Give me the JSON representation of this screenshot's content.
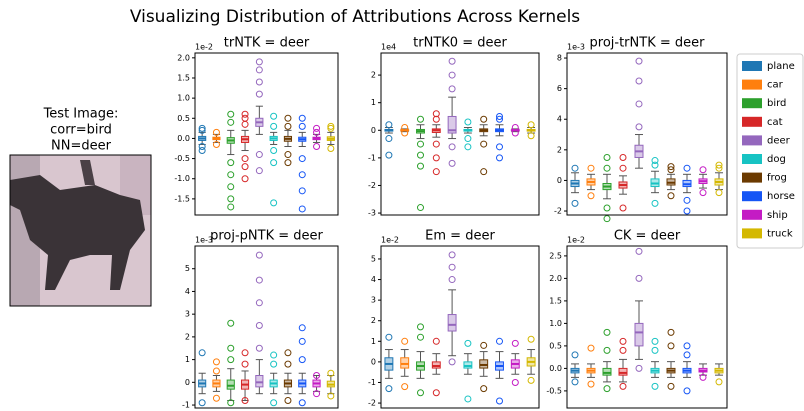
{
  "title": "Visualizing Distribution of Attributions Across Kernels",
  "image_caption": [
    "Test Image:",
    "corr=bird",
    "NN=deer"
  ],
  "legend": {
    "labels": [
      "plane",
      "car",
      "bird",
      "cat",
      "deer",
      "dog",
      "frog",
      "horse",
      "ship",
      "truck"
    ],
    "colors": [
      "#1f77b4",
      "#ff7f0e",
      "#2ca02c",
      "#d62728",
      "#9467bd",
      "#17c3c3",
      "#6b3a00",
      "#1555f5",
      "#c41bc4",
      "#d4b800"
    ]
  },
  "chart_data": [
    {
      "type": "box",
      "title": "trNTK = deer",
      "offset_label": "1e-2",
      "ylim": [
        -1.9,
        2.12
      ],
      "yticks": [
        -1.5,
        {
          "value": -1,
          "label": "-1.0"
        },
        -0.5,
        {
          "value": 0,
          "label": "0.0"
        },
        0.5,
        {
          "value": 1,
          "label": "1.0"
        },
        1.5,
        {
          "value": 2,
          "label": "2.0"
        }
      ],
      "boxes": [
        {
          "low": -0.15,
          "q1": -0.05,
          "median": 0,
          "q3": 0.05,
          "high": 0.15,
          "outliers": [
            -0.3,
            -0.2,
            0.2,
            0.25
          ]
        },
        {
          "low": -0.1,
          "q1": -0.03,
          "median": 0,
          "q3": 0.03,
          "high": 0.1,
          "outliers": [
            -0.15,
            0.15
          ]
        },
        {
          "low": -0.4,
          "q1": -0.12,
          "median": -0.05,
          "q3": 0.02,
          "high": 0.2,
          "outliers": [
            -1.7,
            -1.5,
            -1.2,
            -0.9,
            -0.6,
            0.4,
            0.6
          ]
        },
        {
          "low": -0.3,
          "q1": -0.1,
          "median": -0.02,
          "q3": 0.05,
          "high": 0.2,
          "outliers": [
            -1.0,
            -0.7,
            -0.5,
            0.35,
            0.5,
            0.6
          ]
        },
        {
          "low": 0.1,
          "q1": 0.3,
          "median": 0.4,
          "q3": 0.5,
          "high": 0.8,
          "outliers": [
            -0.8,
            -0.4,
            1.1,
            1.4,
            1.7,
            1.9
          ]
        },
        {
          "low": -0.15,
          "q1": -0.05,
          "median": 0,
          "q3": 0.05,
          "high": 0.15,
          "outliers": [
            -1.6,
            -0.6,
            -0.3,
            0.3,
            0.55
          ]
        },
        {
          "low": -0.2,
          "q1": -0.07,
          "median": -0.01,
          "q3": 0.05,
          "high": 0.2,
          "outliers": [
            -0.6,
            -0.4,
            0.3,
            0.5
          ]
        },
        {
          "low": -0.2,
          "q1": -0.07,
          "median": -0.02,
          "q3": 0.03,
          "high": 0.15,
          "outliers": [
            -1.75,
            -1.3,
            -0.9,
            -0.5,
            0.3,
            0.5
          ]
        },
        {
          "low": -0.1,
          "q1": -0.03,
          "median": 0,
          "q3": 0.03,
          "high": 0.1,
          "outliers": [
            -0.2,
            0.15,
            0.25
          ]
        },
        {
          "low": -0.15,
          "q1": -0.05,
          "median": -0.01,
          "q3": 0.04,
          "high": 0.15,
          "outliers": [
            -0.25,
            0.25,
            0.3
          ]
        }
      ]
    },
    {
      "type": "box",
      "title": "trNTK0 = deer",
      "offset_label": "1e4",
      "ylim": [
        -3.07,
        2.8
      ],
      "yticks": [
        -3,
        -2,
        -1,
        0,
        1,
        2
      ],
      "boxes": [
        {
          "low": -0.1,
          "q1": -0.03,
          "median": 0,
          "q3": 0.03,
          "high": 0.1,
          "outliers": [
            -0.9,
            -0.3,
            0.2
          ]
        },
        {
          "low": -0.05,
          "q1": -0.02,
          "median": 0,
          "q3": 0.02,
          "high": 0.05,
          "outliers": [
            -0.1,
            0.1
          ]
        },
        {
          "low": -0.3,
          "q1": -0.1,
          "median": -0.03,
          "q3": 0.03,
          "high": 0.2,
          "outliers": [
            -2.8,
            -1.3,
            -0.9,
            -0.5,
            0.4
          ]
        },
        {
          "low": -0.25,
          "q1": -0.08,
          "median": 0,
          "q3": 0.05,
          "high": 0.2,
          "outliers": [
            -1.5,
            -1.0,
            -0.5,
            0.4,
            0.6
          ]
        },
        {
          "low": -0.3,
          "q1": -0.1,
          "median": 0,
          "q3": 0.5,
          "high": 1.2,
          "outliers": [
            -1.2,
            -0.6,
            1.5,
            2.0,
            2.5
          ]
        },
        {
          "low": -0.1,
          "q1": -0.03,
          "median": 0,
          "q3": 0.03,
          "high": 0.1,
          "outliers": [
            -0.6,
            -0.3,
            0.3
          ]
        },
        {
          "low": -0.2,
          "q1": -0.05,
          "median": 0,
          "q3": 0.05,
          "high": 0.2,
          "outliers": [
            -1.5,
            -0.5,
            0.4
          ]
        },
        {
          "low": -0.2,
          "q1": -0.05,
          "median": 0,
          "q3": 0.05,
          "high": 0.2,
          "outliers": [
            -1.0,
            -0.6,
            0.4,
            0.5
          ]
        },
        {
          "low": -0.05,
          "q1": -0.02,
          "median": 0,
          "q3": 0.02,
          "high": 0.05,
          "outliers": [
            -0.1,
            0.1
          ]
        },
        {
          "low": -0.1,
          "q1": -0.03,
          "median": 0,
          "q3": 0.03,
          "high": 0.1,
          "outliers": [
            -0.2,
            0.2
          ]
        }
      ]
    },
    {
      "type": "box",
      "title": "proj-trNTK = deer",
      "offset_label": "1e-3",
      "ylim": [
        -2.26,
        8.33
      ],
      "yticks": [
        -2,
        0,
        2,
        4,
        6,
        8
      ],
      "boxes": [
        {
          "low": -0.8,
          "q1": -0.4,
          "median": -0.2,
          "q3": 0,
          "high": 0.5,
          "outliers": [
            -1.5,
            0.8
          ]
        },
        {
          "low": -0.6,
          "q1": -0.3,
          "median": -0.1,
          "q3": 0.1,
          "high": 0.4,
          "outliers": [
            -1.0,
            0.8
          ]
        },
        {
          "low": -1.2,
          "q1": -0.6,
          "median": -0.4,
          "q3": -0.2,
          "high": 0.4,
          "outliers": [
            -2.5,
            -1.8,
            0.8,
            1.5
          ]
        },
        {
          "low": -0.9,
          "q1": -0.5,
          "median": -0.3,
          "q3": -0.1,
          "high": 0.3,
          "outliers": [
            -1.8,
            0.8,
            1.5
          ]
        },
        {
          "low": 0.8,
          "q1": 1.5,
          "median": 1.9,
          "q3": 2.3,
          "high": 3.0,
          "outliers": [
            3.5,
            5,
            6.5,
            7.8
          ]
        },
        {
          "low": -0.8,
          "q1": -0.4,
          "median": -0.2,
          "q3": 0.1,
          "high": 0.6,
          "outliers": [
            -1.5,
            1.0,
            1.3
          ]
        },
        {
          "low": -0.6,
          "q1": -0.3,
          "median": -0.15,
          "q3": 0.1,
          "high": 0.4,
          "outliers": [
            -1.0,
            0.7,
            0.9
          ]
        },
        {
          "low": -0.8,
          "q1": -0.4,
          "median": -0.25,
          "q3": 0,
          "high": 0.4,
          "outliers": [
            -2.0,
            -1.3,
            0.8
          ]
        },
        {
          "low": -0.5,
          "q1": -0.2,
          "median": -0.05,
          "q3": 0.1,
          "high": 0.4,
          "outliers": [
            -0.8,
            0.7
          ]
        },
        {
          "low": -0.6,
          "q1": -0.3,
          "median": -0.1,
          "q3": 0.1,
          "high": 0.5,
          "outliers": [
            -0.8,
            0.8,
            1.0
          ]
        }
      ]
    },
    {
      "type": "box",
      "title": "proj-pNTK = deer",
      "offset_label": "1e-3",
      "ylim": [
        -1.13,
        6.0
      ],
      "yticks": [
        -1,
        0,
        1,
        2,
        3,
        4,
        5
      ],
      "boxes": [
        {
          "low": -0.5,
          "q1": -0.2,
          "median": -0.05,
          "q3": 0.1,
          "high": 0.4,
          "outliers": [
            -0.9,
            1.3
          ]
        },
        {
          "low": -0.4,
          "q1": -0.2,
          "median": -0.05,
          "q3": 0.1,
          "high": 0.3,
          "outliers": [
            -0.7,
            0.5,
            0.9
          ]
        },
        {
          "low": -0.8,
          "q1": -0.3,
          "median": -0.15,
          "q3": 0.1,
          "high": 0.6,
          "outliers": [
            -0.9,
            1.0,
            1.5,
            2.6
          ]
        },
        {
          "low": -0.8,
          "q1": -0.3,
          "median": -0.1,
          "q3": 0.1,
          "high": 0.5,
          "outliers": [
            -0.8,
            0.8,
            1.3
          ]
        },
        {
          "low": -0.5,
          "q1": -0.2,
          "median": 0,
          "q3": 0.3,
          "high": 1.0,
          "outliers": [
            1.5,
            2.5,
            3.5,
            4.5,
            5.6
          ]
        },
        {
          "low": -0.5,
          "q1": -0.2,
          "median": -0.05,
          "q3": 0.1,
          "high": 0.4,
          "outliers": [
            -0.9,
            0.8,
            1.2
          ]
        },
        {
          "low": -0.5,
          "q1": -0.2,
          "median": -0.05,
          "q3": 0.1,
          "high": 0.4,
          "outliers": [
            -0.8,
            0.8,
            1.3
          ]
        },
        {
          "low": -0.5,
          "q1": -0.2,
          "median": -0.05,
          "q3": 0.1,
          "high": 0.4,
          "outliers": [
            -0.9,
            1.0,
            1.8,
            2.4
          ]
        },
        {
          "low": -0.4,
          "q1": -0.2,
          "median": -0.05,
          "q3": 0.1,
          "high": 0.3,
          "outliers": [
            -0.5,
            0.3
          ]
        },
        {
          "low": -0.5,
          "q1": -0.2,
          "median": -0.1,
          "q3": 0.05,
          "high": 0.3,
          "outliers": [
            -0.6,
            0.4
          ]
        }
      ]
    },
    {
      "type": "box",
      "title": "Em = deer",
      "offset_label": "1e-2",
      "ylim": [
        -2.24,
        5.63
      ],
      "yticks": [
        -2,
        -1,
        0,
        1,
        2,
        3,
        4,
        5
      ],
      "boxes": [
        {
          "low": -0.8,
          "q1": -0.4,
          "median": -0.1,
          "q3": 0.2,
          "high": 0.6,
          "outliers": [
            -1.3,
            1.2
          ]
        },
        {
          "low": -0.7,
          "q1": -0.3,
          "median": -0.1,
          "q3": 0.2,
          "high": 0.6,
          "outliers": [
            -1.2,
            1.0
          ]
        },
        {
          "low": -0.8,
          "q1": -0.4,
          "median": -0.2,
          "q3": 0,
          "high": 0.5,
          "outliers": [
            -1.5,
            1.2,
            1.7
          ]
        },
        {
          "low": -0.6,
          "q1": -0.3,
          "median": -0.2,
          "q3": 0,
          "high": 0.4,
          "outliers": [
            -1.5,
            1.0
          ]
        },
        {
          "low": 0.3,
          "q1": 1.5,
          "median": 1.8,
          "q3": 2.3,
          "high": 3.5,
          "outliers": [
            0,
            4.0,
            4.6,
            5.2
          ]
        },
        {
          "low": -0.6,
          "q1": -0.3,
          "median": -0.2,
          "q3": 0,
          "high": 0.4,
          "outliers": [
            -1.8,
            0.9
          ]
        },
        {
          "low": -0.7,
          "q1": -0.3,
          "median": -0.15,
          "q3": 0.1,
          "high": 0.5,
          "outliers": [
            -1.3,
            0.8
          ]
        },
        {
          "low": -0.8,
          "q1": -0.4,
          "median": -0.2,
          "q3": 0,
          "high": 0.5,
          "outliers": [
            -1.9,
            1.0
          ]
        },
        {
          "low": -0.6,
          "q1": -0.3,
          "median": -0.1,
          "q3": 0.1,
          "high": 0.4,
          "outliers": [
            -1.0,
            0.9
          ]
        },
        {
          "low": -0.6,
          "q1": -0.2,
          "median": 0,
          "q3": 0.2,
          "high": 0.6,
          "outliers": [
            -0.9,
            1.1
          ]
        }
      ]
    },
    {
      "type": "box",
      "title": "CK = deer",
      "offset_label": "1e-2",
      "ylim": [
        -0.88,
        2.72
      ],
      "yticks": [
        -0.5,
        {
          "value": 0,
          "label": "0.0"
        },
        0.5,
        {
          "value": 1,
          "label": "1.0"
        },
        1.5,
        {
          "value": 2,
          "label": "2.0"
        },
        2.5
      ],
      "boxes": [
        {
          "low": -0.2,
          "q1": -0.1,
          "median": -0.05,
          "q3": 0,
          "high": 0.1,
          "outliers": [
            -0.3,
            0.3
          ]
        },
        {
          "low": -0.2,
          "q1": -0.1,
          "median": -0.05,
          "q3": 0,
          "high": 0.1,
          "outliers": [
            -0.35,
            0.45
          ]
        },
        {
          "low": -0.3,
          "q1": -0.15,
          "median": -0.1,
          "q3": 0,
          "high": 0.15,
          "outliers": [
            -0.45,
            0.4,
            0.8
          ]
        },
        {
          "low": -0.3,
          "q1": -0.15,
          "median": -0.1,
          "q3": 0,
          "high": 0.2,
          "outliers": [
            -0.4,
            0.4,
            0.6
          ]
        },
        {
          "low": 0.2,
          "q1": 0.5,
          "median": 0.8,
          "q3": 1.0,
          "high": 1.5,
          "outliers": [
            0,
            2.0,
            2.6
          ]
        },
        {
          "low": -0.2,
          "q1": -0.1,
          "median": -0.05,
          "q3": 0,
          "high": 0.15,
          "outliers": [
            -0.4,
            0.4,
            0.6
          ]
        },
        {
          "low": -0.2,
          "q1": -0.1,
          "median": -0.05,
          "q3": 0,
          "high": 0.15,
          "outliers": [
            -0.4,
            0.5,
            0.8
          ]
        },
        {
          "low": -0.2,
          "q1": -0.1,
          "median": -0.05,
          "q3": 0,
          "high": 0.15,
          "outliers": [
            -0.5,
            0.3,
            0.5
          ]
        },
        {
          "low": -0.15,
          "q1": -0.08,
          "median": -0.05,
          "q3": 0,
          "high": 0.1,
          "outliers": [
            -0.2
          ]
        },
        {
          "low": -0.15,
          "q1": -0.1,
          "median": -0.05,
          "q3": 0,
          "high": 0.1,
          "outliers": [
            -0.3
          ]
        }
      ]
    }
  ]
}
